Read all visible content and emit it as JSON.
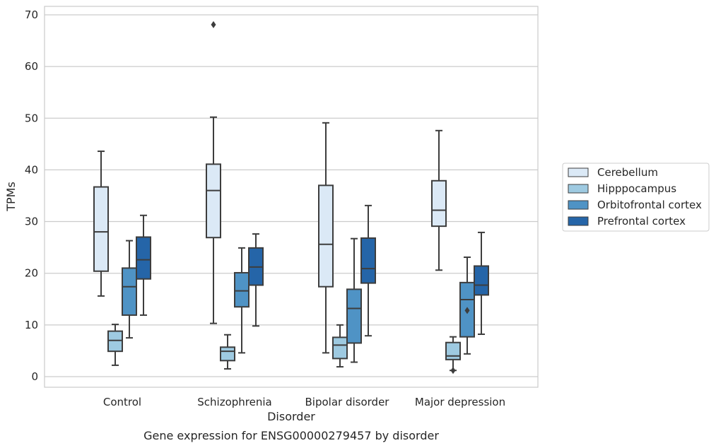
{
  "chart_data": {
    "type": "box",
    "caption": "Gene expression for ENSG00000279457 by disorder",
    "xlabel": "Disorder",
    "ylabel": "TPMs",
    "ylim": [
      -2,
      71.5
    ],
    "yticks": [
      0,
      10,
      20,
      30,
      40,
      50,
      60,
      70
    ],
    "grid": "horizontal",
    "legend_position": "right",
    "categories": [
      "Control",
      "Schizophrenia",
      "Bipolar disorder",
      "Major depression"
    ],
    "series": [
      {
        "name": "Cerebellum",
        "color": "#dbe9f6",
        "boxes": [
          {
            "whisker_low": 15.6,
            "q1": 20.4,
            "median": 28.0,
            "q3": 36.7,
            "whisker_high": 43.6,
            "outliers": []
          },
          {
            "whisker_low": 10.3,
            "q1": 26.9,
            "median": 36.0,
            "q3": 41.1,
            "whisker_high": 50.2,
            "outliers": [
              68.1
            ]
          },
          {
            "whisker_low": 4.6,
            "q1": 17.4,
            "median": 25.6,
            "q3": 37.0,
            "whisker_high": 49.1,
            "outliers": []
          },
          {
            "whisker_low": 20.6,
            "q1": 29.1,
            "median": 32.2,
            "q3": 37.9,
            "whisker_high": 47.6,
            "outliers": []
          }
        ]
      },
      {
        "name": "Hipppocampus",
        "color": "#9ecae1",
        "boxes": [
          {
            "whisker_low": 2.2,
            "q1": 4.9,
            "median": 7.0,
            "q3": 8.8,
            "whisker_high": 10.1,
            "outliers": []
          },
          {
            "whisker_low": 1.5,
            "q1": 3.1,
            "median": 4.9,
            "q3": 5.7,
            "whisker_high": 8.1,
            "outliers": []
          },
          {
            "whisker_low": 1.9,
            "q1": 3.5,
            "median": 6.1,
            "q3": 7.6,
            "whisker_high": 10.0,
            "outliers": []
          },
          {
            "whisker_low": 1.2,
            "q1": 3.3,
            "median": 4.0,
            "q3": 6.6,
            "whisker_high": 7.7,
            "outliers": [
              1.2
            ]
          }
        ]
      },
      {
        "name": "Orbitofrontal cortex",
        "color": "#4f93c5",
        "boxes": [
          {
            "whisker_low": 7.5,
            "q1": 11.9,
            "median": 17.4,
            "q3": 21.0,
            "whisker_high": 26.3,
            "outliers": []
          },
          {
            "whisker_low": 4.6,
            "q1": 13.5,
            "median": 16.6,
            "q3": 20.1,
            "whisker_high": 24.9,
            "outliers": []
          },
          {
            "whisker_low": 2.8,
            "q1": 6.5,
            "median": 13.2,
            "q3": 16.9,
            "whisker_high": 26.7,
            "outliers": []
          },
          {
            "whisker_low": 4.4,
            "q1": 7.7,
            "median": 14.9,
            "q3": 18.2,
            "whisker_high": 23.1,
            "outliers": [
              12.8
            ]
          }
        ]
      },
      {
        "name": "Prefrontal cortex",
        "color": "#2565a8",
        "boxes": [
          {
            "whisker_low": 11.9,
            "q1": 18.9,
            "median": 22.6,
            "q3": 27.0,
            "whisker_high": 31.2,
            "outliers": []
          },
          {
            "whisker_low": 9.8,
            "q1": 17.7,
            "median": 21.2,
            "q3": 24.9,
            "whisker_high": 27.6,
            "outliers": []
          },
          {
            "whisker_low": 7.9,
            "q1": 18.1,
            "median": 20.9,
            "q3": 26.8,
            "whisker_high": 33.1,
            "outliers": []
          },
          {
            "whisker_low": 8.2,
            "q1": 15.8,
            "median": 17.7,
            "q3": 21.4,
            "whisker_high": 27.9,
            "outliers": []
          }
        ]
      }
    ]
  }
}
